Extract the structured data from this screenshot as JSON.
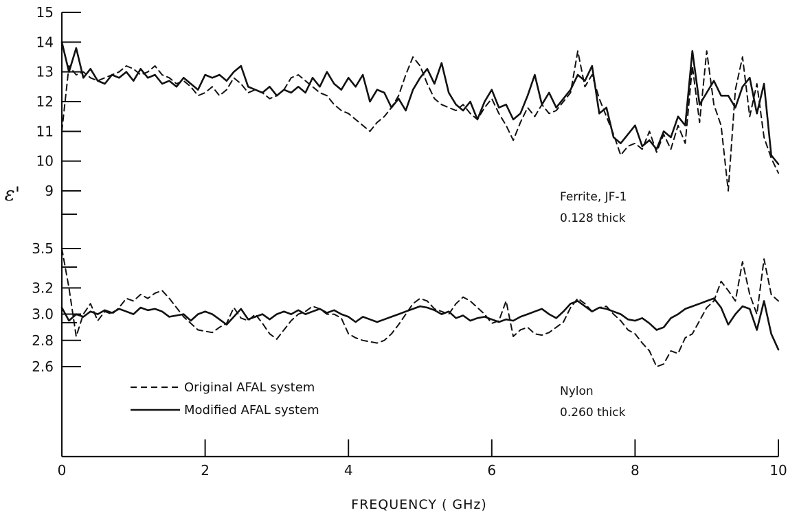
{
  "chart_data": {
    "type": "line",
    "xlabel": "FREQUENCY ( GHz)",
    "ylabel": "ε'",
    "xlim": [
      0,
      10
    ],
    "x_ticks": [
      "0",
      "2",
      "4",
      "6",
      "8",
      "10"
    ],
    "grid": false,
    "legend": {
      "placement": "lower-left",
      "entries": [
        {
          "label": "Original AFAL system",
          "style": "dashed"
        },
        {
          "label": "Modified AFAL system",
          "style": "solid"
        }
      ]
    },
    "panels": [
      {
        "name": "ferrite",
        "annotation": [
          "Ferrite, JF-1",
          "0.128 thick"
        ],
        "ylim": [
          9,
          15
        ],
        "y_ticks": [
          "9",
          "10",
          "11",
          "12",
          "13",
          "14",
          "15"
        ],
        "series": [
          {
            "name": "Original AFAL system",
            "style": "dashed",
            "x": [
              0.0,
              0.1,
              0.2,
              0.3,
              0.4,
              0.5,
              0.6,
              0.7,
              0.8,
              0.9,
              1.0,
              1.1,
              1.2,
              1.3,
              1.4,
              1.5,
              1.6,
              1.7,
              1.8,
              1.9,
              2.0,
              2.1,
              2.2,
              2.3,
              2.4,
              2.5,
              2.6,
              2.7,
              2.8,
              2.9,
              3.0,
              3.1,
              3.2,
              3.3,
              3.4,
              3.5,
              3.6,
              3.7,
              3.8,
              3.9,
              4.0,
              4.1,
              4.2,
              4.3,
              4.4,
              4.5,
              4.6,
              4.7,
              4.8,
              4.9,
              5.0,
              5.1,
              5.2,
              5.3,
              5.4,
              5.5,
              5.6,
              5.7,
              5.8,
              5.9,
              6.0,
              6.1,
              6.2,
              6.3,
              6.4,
              6.5,
              6.6,
              6.7,
              6.8,
              6.9,
              7.0,
              7.1,
              7.2,
              7.3,
              7.4,
              7.5,
              7.6,
              7.7,
              7.8,
              7.9,
              8.0,
              8.1,
              8.2,
              8.3,
              8.4,
              8.5,
              8.6,
              8.7,
              8.8,
              8.9,
              9.0,
              9.1,
              9.2,
              9.3,
              9.4,
              9.5,
              9.6,
              9.7,
              9.8,
              9.9,
              10.0
            ],
            "values": [
              11.0,
              13.2,
              12.9,
              13.0,
              12.8,
              12.7,
              12.8,
              12.9,
              13.0,
              13.2,
              13.1,
              12.9,
              13.0,
              13.2,
              12.9,
              12.8,
              12.6,
              12.7,
              12.5,
              12.2,
              12.3,
              12.5,
              12.2,
              12.4,
              12.8,
              12.6,
              12.3,
              12.4,
              12.3,
              12.1,
              12.2,
              12.4,
              12.8,
              12.9,
              12.7,
              12.5,
              12.3,
              12.2,
              11.9,
              11.7,
              11.6,
              11.4,
              11.2,
              11.0,
              11.3,
              11.5,
              11.8,
              12.2,
              12.9,
              13.5,
              13.2,
              12.6,
              12.1,
              11.9,
              11.8,
              11.7,
              11.9,
              11.6,
              11.4,
              11.8,
              12.1,
              11.6,
              11.2,
              10.7,
              11.3,
              11.8,
              11.5,
              11.9,
              11.6,
              11.7,
              12.0,
              12.3,
              13.7,
              12.5,
              12.9,
              12.1,
              11.5,
              10.9,
              10.2,
              10.5,
              10.6,
              10.4,
              11.0,
              10.3,
              10.9,
              10.4,
              11.2,
              10.6,
              13.2,
              11.3,
              13.7,
              11.9,
              11.2,
              9.0,
              12.4,
              13.5,
              11.5,
              12.6,
              10.8,
              10.1,
              9.6
            ]
          },
          {
            "name": "Modified AFAL system",
            "style": "solid",
            "x": [
              0.0,
              0.1,
              0.2,
              0.3,
              0.4,
              0.5,
              0.6,
              0.7,
              0.8,
              0.9,
              1.0,
              1.1,
              1.2,
              1.3,
              1.4,
              1.5,
              1.6,
              1.7,
              1.8,
              1.9,
              2.0,
              2.1,
              2.2,
              2.3,
              2.4,
              2.5,
              2.6,
              2.7,
              2.8,
              2.9,
              3.0,
              3.1,
              3.2,
              3.3,
              3.4,
              3.5,
              3.6,
              3.7,
              3.8,
              3.9,
              4.0,
              4.1,
              4.2,
              4.3,
              4.4,
              4.5,
              4.6,
              4.7,
              4.8,
              4.9,
              5.0,
              5.1,
              5.2,
              5.3,
              5.4,
              5.5,
              5.6,
              5.7,
              5.8,
              5.9,
              6.0,
              6.1,
              6.2,
              6.3,
              6.4,
              6.5,
              6.6,
              6.7,
              6.8,
              6.9,
              7.0,
              7.1,
              7.2,
              7.3,
              7.4,
              7.5,
              7.6,
              7.7,
              7.8,
              7.9,
              8.0,
              8.1,
              8.2,
              8.3,
              8.4,
              8.5,
              8.6,
              8.7,
              8.8,
              8.9,
              9.0,
              9.1,
              9.2,
              9.3,
              9.4,
              9.5,
              9.6,
              9.7,
              9.8,
              9.9,
              10.0
            ],
            "values": [
              14.0,
              13.0,
              13.8,
              12.8,
              13.1,
              12.7,
              12.6,
              12.9,
              12.8,
              13.0,
              12.7,
              13.1,
              12.8,
              12.9,
              12.6,
              12.7,
              12.5,
              12.8,
              12.6,
              12.4,
              12.9,
              12.8,
              12.9,
              12.7,
              13.0,
              13.2,
              12.5,
              12.4,
              12.3,
              12.5,
              12.2,
              12.4,
              12.3,
              12.5,
              12.3,
              12.8,
              12.5,
              13.0,
              12.6,
              12.4,
              12.8,
              12.5,
              12.9,
              12.0,
              12.4,
              12.3,
              11.8,
              12.1,
              11.7,
              12.4,
              12.8,
              13.1,
              12.6,
              13.3,
              12.3,
              11.9,
              11.7,
              12.0,
              11.4,
              12.0,
              12.4,
              11.8,
              11.9,
              11.4,
              11.6,
              12.2,
              12.9,
              11.9,
              12.3,
              11.8,
              12.1,
              12.4,
              12.9,
              12.7,
              13.2,
              11.6,
              11.8,
              10.8,
              10.6,
              10.9,
              11.2,
              10.5,
              10.7,
              10.4,
              11.0,
              10.8,
              11.5,
              11.2,
              13.7,
              11.9,
              12.3,
              12.7,
              12.2,
              12.2,
              11.8,
              12.5,
              12.8,
              11.6,
              12.6,
              10.2,
              9.9
            ]
          }
        ]
      },
      {
        "name": "nylon",
        "annotation": [
          "Nylon",
          "0.260 thick"
        ],
        "ylim": [
          2.6,
          3.5
        ],
        "y_ticks": [
          "2.6",
          "2.8",
          "3.0",
          "3.2",
          "3.5"
        ],
        "series": [
          {
            "name": "Original AFAL system",
            "style": "dashed",
            "x": [
              0.0,
              0.1,
              0.2,
              0.3,
              0.4,
              0.5,
              0.6,
              0.7,
              0.8,
              0.9,
              1.0,
              1.1,
              1.2,
              1.3,
              1.4,
              1.5,
              1.6,
              1.7,
              1.8,
              1.9,
              2.0,
              2.1,
              2.2,
              2.3,
              2.4,
              2.5,
              2.6,
              2.7,
              2.8,
              2.9,
              3.0,
              3.1,
              3.2,
              3.3,
              3.4,
              3.5,
              3.6,
              3.7,
              3.8,
              3.9,
              4.0,
              4.1,
              4.2,
              4.3,
              4.4,
              4.5,
              4.6,
              4.7,
              4.8,
              4.9,
              5.0,
              5.1,
              5.2,
              5.3,
              5.4,
              5.5,
              5.6,
              5.7,
              5.8,
              5.9,
              6.0,
              6.1,
              6.2,
              6.3,
              6.4,
              6.5,
              6.6,
              6.7,
              6.8,
              6.9,
              7.0,
              7.1,
              7.2,
              7.3,
              7.4,
              7.5,
              7.6,
              7.7,
              7.8,
              7.9,
              8.0,
              8.1,
              8.2,
              8.3,
              8.4,
              8.5,
              8.6,
              8.7,
              8.8,
              8.9,
              9.0,
              9.1,
              9.2,
              9.3,
              9.4,
              9.5,
              9.6,
              9.7,
              9.8,
              9.9,
              10.0
            ],
            "values": [
              3.5,
              3.2,
              2.83,
              3.0,
              3.08,
              2.95,
              3.02,
              3.0,
              3.05,
              3.12,
              3.1,
              3.15,
              3.12,
              3.16,
              3.18,
              3.12,
              3.05,
              2.98,
              2.93,
              2.88,
              2.87,
              2.86,
              2.9,
              2.93,
              3.05,
              2.97,
              2.95,
              3.0,
              2.93,
              2.85,
              2.81,
              2.88,
              2.95,
              3.0,
              3.02,
              3.06,
              3.04,
              3.0,
              3.0,
              2.97,
              2.85,
              2.82,
              2.8,
              2.79,
              2.78,
              2.8,
              2.85,
              2.92,
              3.0,
              3.08,
              3.12,
              3.1,
              3.04,
              3.02,
              3.0,
              3.08,
              3.13,
              3.1,
              3.05,
              3.0,
              2.93,
              2.95,
              3.1,
              2.83,
              2.88,
              2.9,
              2.85,
              2.84,
              2.86,
              2.9,
              2.94,
              3.05,
              3.12,
              3.08,
              3.02,
              3.05,
              3.06,
              3.0,
              2.95,
              2.88,
              2.85,
              2.78,
              2.72,
              2.6,
              2.62,
              2.72,
              2.7,
              2.82,
              2.85,
              2.95,
              3.05,
              3.1,
              3.25,
              3.18,
              3.1,
              3.4,
              3.15,
              3.0,
              3.42,
              3.15,
              3.1
            ]
          },
          {
            "name": "Modified AFAL system",
            "style": "solid",
            "x": [
              0.0,
              0.1,
              0.2,
              0.3,
              0.4,
              0.5,
              0.6,
              0.7,
              0.8,
              0.9,
              1.0,
              1.1,
              1.2,
              1.3,
              1.4,
              1.5,
              1.6,
              1.7,
              1.8,
              1.9,
              2.0,
              2.1,
              2.2,
              2.3,
              2.4,
              2.5,
              2.6,
              2.7,
              2.8,
              2.9,
              3.0,
              3.1,
              3.2,
              3.3,
              3.4,
              3.5,
              3.6,
              3.7,
              3.8,
              3.9,
              4.0,
              4.1,
              4.2,
              4.3,
              4.4,
              4.5,
              4.6,
              4.7,
              4.8,
              4.9,
              5.0,
              5.1,
              5.2,
              5.3,
              5.4,
              5.5,
              5.6,
              5.7,
              5.8,
              5.9,
              6.0,
              6.1,
              6.2,
              6.3,
              6.4,
              6.5,
              6.6,
              6.7,
              6.8,
              6.9,
              7.0,
              7.1,
              7.2,
              7.3,
              7.4,
              7.5,
              7.6,
              7.7,
              7.8,
              7.9,
              8.0,
              8.1,
              8.2,
              8.3,
              8.4,
              8.5,
              8.6,
              8.7,
              8.8,
              8.9,
              9.0,
              9.1,
              9.2,
              9.3,
              9.4,
              9.5,
              9.6,
              9.7,
              9.8,
              9.9,
              10.0
            ],
            "values": [
              3.05,
              2.95,
              3.0,
              2.98,
              3.02,
              3.0,
              3.03,
              3.01,
              3.04,
              3.02,
              3.0,
              3.05,
              3.03,
              3.04,
              3.02,
              2.98,
              2.99,
              3.0,
              2.95,
              3.0,
              3.02,
              3.0,
              2.96,
              2.92,
              2.98,
              3.04,
              2.96,
              2.98,
              3.0,
              2.96,
              3.0,
              3.02,
              3.0,
              3.03,
              3.0,
              3.02,
              3.04,
              3.01,
              3.03,
              3.0,
              2.98,
              2.94,
              2.98,
              2.96,
              2.94,
              2.96,
              2.98,
              3.0,
              3.02,
              3.04,
              3.06,
              3.05,
              3.03,
              3.0,
              3.02,
              2.97,
              2.99,
              2.95,
              2.97,
              2.98,
              2.96,
              2.94,
              2.96,
              2.95,
              2.98,
              3.0,
              3.02,
              3.04,
              3.0,
              2.97,
              3.02,
              3.08,
              3.1,
              3.06,
              3.02,
              3.05,
              3.04,
              3.02,
              3.0,
              2.96,
              2.95,
              2.97,
              2.93,
              2.88,
              2.9,
              2.97,
              3.0,
              3.04,
              3.06,
              3.08,
              3.1,
              3.12,
              3.05,
              2.92,
              3.0,
              3.06,
              3.04,
              2.88,
              3.1,
              2.85,
              2.73
            ]
          }
        ]
      }
    ]
  }
}
